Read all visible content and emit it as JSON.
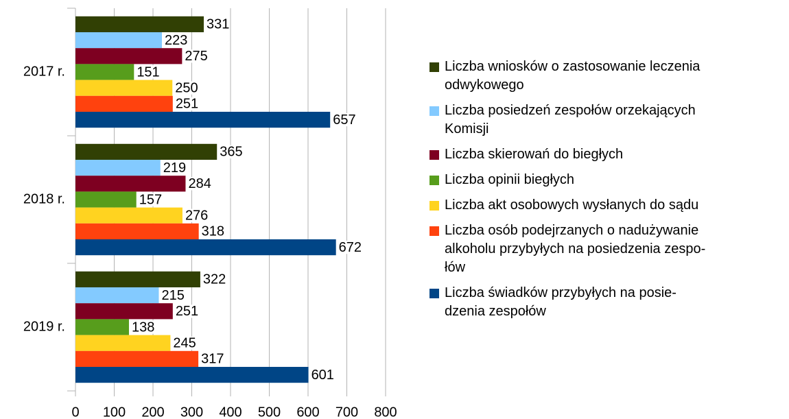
{
  "chart_data": {
    "type": "bar",
    "orientation": "horizontal",
    "categories": [
      "2017 r.",
      "2018 r.",
      "2019 r."
    ],
    "series": [
      {
        "name": "Liczba wniosków o zastosowanie leczenia\nodwykowego",
        "color": "#314004",
        "values": [
          331,
          365,
          322
        ]
      },
      {
        "name": "Liczba posiedzeń zespołów orzekających\nKomisji",
        "color": "#83caff",
        "values": [
          223,
          219,
          215
        ]
      },
      {
        "name": "Liczba skierowań do biegłych",
        "color": "#7e0021",
        "values": [
          275,
          284,
          251
        ]
      },
      {
        "name": "Liczba opinii biegłych",
        "color": "#579d1c",
        "values": [
          151,
          157,
          138
        ]
      },
      {
        "name": "Liczba akt osobowych wysłanych do sądu",
        "color": "#ffd320",
        "values": [
          250,
          276,
          245
        ]
      },
      {
        "name": "Liczba osób podejrzanych o nadużywanie\nalkoholu przybyłych na posiedzenia zespo-\nłów",
        "color": "#ff420e",
        "values": [
          251,
          318,
          317
        ]
      },
      {
        "name": "Liczba świadków przybyłych na posie-\ndzenia zespołów",
        "color": "#004586",
        "values": [
          657,
          672,
          601
        ]
      }
    ],
    "xlim": [
      0,
      800
    ],
    "xticks": [
      0,
      100,
      200,
      300,
      400,
      500,
      600,
      700,
      800
    ],
    "grid": true,
    "legend": "right"
  }
}
